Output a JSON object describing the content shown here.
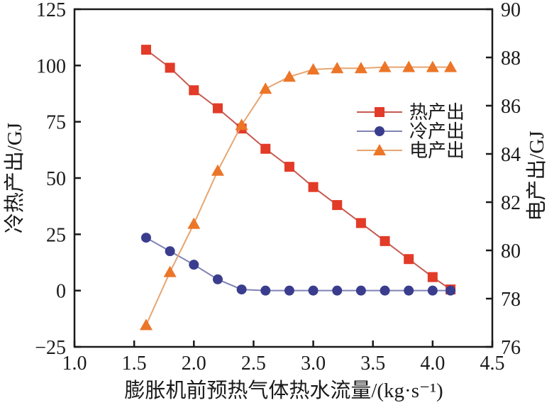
{
  "chart_data": {
    "type": "line",
    "title": "",
    "xlabel": "膨胀机前预热气体热水流量/(kg·s⁻¹)",
    "ylabel_left": "冷热产出/GJ",
    "ylabel_right": "电产出/GJ",
    "x_range": [
      1.0,
      4.5
    ],
    "x_ticks": [
      1.0,
      1.5,
      2.0,
      2.5,
      3.0,
      3.5,
      4.0,
      4.5
    ],
    "y_left_range": [
      -25,
      125
    ],
    "y_left_ticks": [
      -25,
      0,
      25,
      50,
      75,
      100,
      125
    ],
    "y_right_range": [
      76,
      90
    ],
    "y_right_ticks": [
      76,
      78,
      80,
      82,
      84,
      86,
      88,
      90
    ],
    "grid": false,
    "legend_position": "center-right",
    "x": [
      1.6,
      1.8,
      2.0,
      2.2,
      2.4,
      2.6,
      2.8,
      3.0,
      3.2,
      3.4,
      3.6,
      3.8,
      4.0,
      4.15
    ],
    "series": [
      {
        "id": "heat-output",
        "name": "热产出",
        "axis": "left",
        "marker": "square",
        "marker_color": "#e23b28",
        "line_color": "#c65a50",
        "values": [
          107,
          99,
          89,
          81,
          72,
          63,
          55,
          46,
          38,
          30,
          22,
          14,
          6,
          0.5
        ]
      },
      {
        "id": "cold-output",
        "name": "冷产出",
        "axis": "left",
        "marker": "circle",
        "marker_color": "#3a3d8e",
        "line_color": "#8084b4",
        "values": [
          23.5,
          17.5,
          11.5,
          5,
          0.5,
          0,
          0,
          0,
          0,
          0,
          0,
          0,
          0,
          0
        ]
      },
      {
        "id": "power-output",
        "name": "电产出",
        "axis": "right",
        "marker": "triangle",
        "marker_color": "#ec7528",
        "line_color": "#e6a571",
        "values": [
          76.9,
          79.1,
          81.1,
          83.3,
          85.2,
          86.7,
          87.2,
          87.5,
          87.55,
          87.55,
          87.6,
          87.6,
          87.6,
          87.6
        ]
      }
    ],
    "axis_color": "#1a1a1a"
  }
}
